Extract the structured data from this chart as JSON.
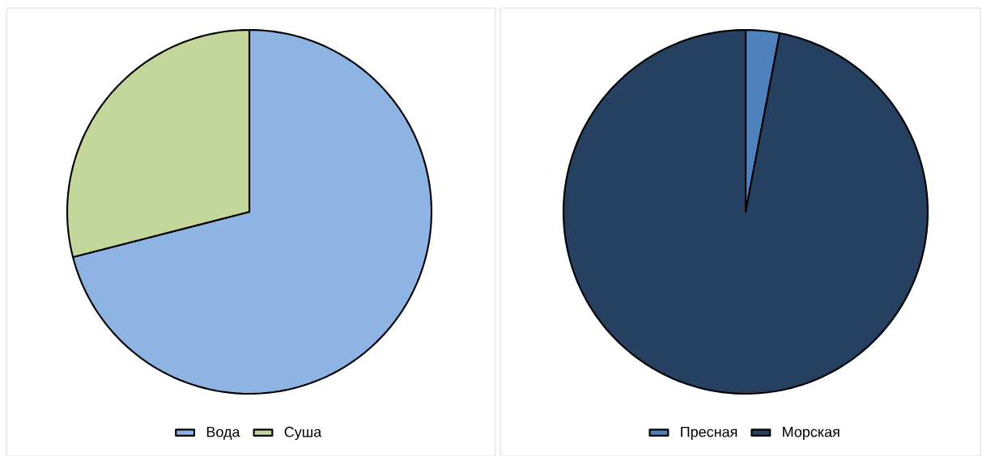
{
  "chart_data": [
    {
      "type": "pie",
      "categories": [
        "Вода",
        "Суша"
      ],
      "values": [
        71,
        29
      ],
      "colors": [
        "#8eb4e3",
        "#c4d79b"
      ],
      "legend": "bottom"
    },
    {
      "type": "pie",
      "categories": [
        "Пресная",
        "Морская"
      ],
      "values": [
        3,
        97
      ],
      "colors": [
        "#4f81bd",
        "#254061"
      ],
      "legend": "bottom"
    }
  ]
}
